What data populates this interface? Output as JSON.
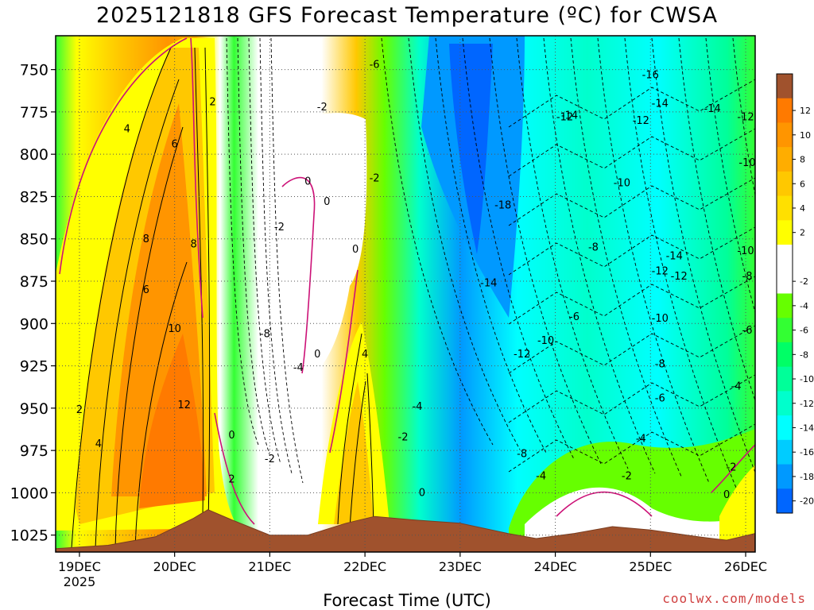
{
  "chart_data": {
    "type": "heatmap",
    "title": "2025121818 GFS Forecast Temperature (ºC) for CWSA",
    "xlabel": "Forecast Time (UTC)",
    "ylabel": "",
    "credit": "coolwx.com/models",
    "y_axis": {
      "unit": "hPa",
      "range": [
        730,
        1035
      ],
      "inverted": true,
      "ticks": [
        750,
        775,
        800,
        825,
        850,
        875,
        900,
        925,
        950,
        975,
        1000,
        1025
      ]
    },
    "x_axis": {
      "range": [
        18.75,
        26.1
      ],
      "ticks": [
        {
          "value": 19,
          "label": "19DEC",
          "sublabel": "2025"
        },
        {
          "value": 20,
          "label": "20DEC",
          "sublabel": ""
        },
        {
          "value": 21,
          "label": "21DEC",
          "sublabel": ""
        },
        {
          "value": 22,
          "label": "22DEC",
          "sublabel": ""
        },
        {
          "value": 23,
          "label": "23DEC",
          "sublabel": ""
        },
        {
          "value": 24,
          "label": "24DEC",
          "sublabel": ""
        },
        {
          "value": 25,
          "label": "25DEC",
          "sublabel": ""
        },
        {
          "value": 26,
          "label": "26DEC",
          "sublabel": ""
        }
      ]
    },
    "grid": true,
    "colorbar": {
      "position": "right",
      "levels": [
        {
          "label": "",
          "color": "#a0522d"
        },
        {
          "label": "12",
          "color": "#ff7a00"
        },
        {
          "label": "10",
          "color": "#ff9500"
        },
        {
          "label": "8",
          "color": "#ffad00"
        },
        {
          "label": "6",
          "color": "#ffc800"
        },
        {
          "label": "4",
          "color": "#ffe000"
        },
        {
          "label": "2",
          "color": "#ffff00"
        },
        {
          "label": "",
          "color": "#ffffff"
        },
        {
          "label": "-2",
          "color": "#ffffff"
        },
        {
          "label": "-4",
          "color": "#66ff00"
        },
        {
          "label": "-6",
          "color": "#33ff33"
        },
        {
          "label": "-8",
          "color": "#00ff66"
        },
        {
          "label": "-10",
          "color": "#00ff99"
        },
        {
          "label": "-12",
          "color": "#00ffcc"
        },
        {
          "label": "-14",
          "color": "#00ffff"
        },
        {
          "label": "-16",
          "color": "#00ccff"
        },
        {
          "label": "-18",
          "color": "#0099ff"
        },
        {
          "label": "-20",
          "color": "#0066ff"
        }
      ]
    },
    "contour_labels": [
      {
        "t": 19.5,
        "p": 787,
        "text": "4"
      },
      {
        "t": 20.0,
        "p": 796,
        "text": "6"
      },
      {
        "t": 20.4,
        "p": 771,
        "text": "2"
      },
      {
        "t": 19.7,
        "p": 852,
        "text": "8"
      },
      {
        "t": 20.2,
        "p": 855,
        "text": "8"
      },
      {
        "t": 19.7,
        "p": 882,
        "text": "6"
      },
      {
        "t": 20.0,
        "p": 905,
        "text": "10"
      },
      {
        "t": 20.1,
        "p": 950,
        "text": "12"
      },
      {
        "t": 19.0,
        "p": 953,
        "text": "2"
      },
      {
        "t": 19.2,
        "p": 973,
        "text": "4"
      },
      {
        "t": 20.6,
        "p": 968,
        "text": "0"
      },
      {
        "t": 20.6,
        "p": 994,
        "text": "2"
      },
      {
        "t": 21.0,
        "p": 982,
        "text": "-2"
      },
      {
        "t": 21.1,
        "p": 845,
        "text": "-2"
      },
      {
        "t": 20.95,
        "p": 908,
        "text": "-8"
      },
      {
        "t": 21.3,
        "p": 928,
        "text": "-4"
      },
      {
        "t": 21.4,
        "p": 818,
        "text": "0"
      },
      {
        "t": 21.6,
        "p": 830,
        "text": "0"
      },
      {
        "t": 21.5,
        "p": 920,
        "text": "0"
      },
      {
        "t": 21.55,
        "p": 774,
        "text": "-2"
      },
      {
        "t": 22.1,
        "p": 749,
        "text": "-6"
      },
      {
        "t": 22.1,
        "p": 816,
        "text": "-2"
      },
      {
        "t": 21.9,
        "p": 858,
        "text": "0"
      },
      {
        "t": 22.0,
        "p": 920,
        "text": "4"
      },
      {
        "t": 22.4,
        "p": 969,
        "text": "-2"
      },
      {
        "t": 22.55,
        "p": 951,
        "text": "-4"
      },
      {
        "t": 22.6,
        "p": 1002,
        "text": "0"
      },
      {
        "t": 23.45,
        "p": 832,
        "text": "-18"
      },
      {
        "t": 23.3,
        "p": 878,
        "text": "-14"
      },
      {
        "t": 23.65,
        "p": 920,
        "text": "-12"
      },
      {
        "t": 23.65,
        "p": 979,
        "text": "-8"
      },
      {
        "t": 23.9,
        "p": 912,
        "text": "-10"
      },
      {
        "t": 23.85,
        "p": 992,
        "text": "-4"
      },
      {
        "t": 24.2,
        "p": 898,
        "text": "-6"
      },
      {
        "t": 24.4,
        "p": 857,
        "text": "-8"
      },
      {
        "t": 24.7,
        "p": 819,
        "text": "-10"
      },
      {
        "t": 24.1,
        "p": 780,
        "text": "-12"
      },
      {
        "t": 24.9,
        "p": 782,
        "text": "-12"
      },
      {
        "t": 24.15,
        "p": 779,
        "text": "-14"
      },
      {
        "t": 25.1,
        "p": 772,
        "text": "-14"
      },
      {
        "t": 25.0,
        "p": 755,
        "text": "-16"
      },
      {
        "t": 25.65,
        "p": 775,
        "text": "-14"
      },
      {
        "t": 26.0,
        "p": 780,
        "text": "-12"
      },
      {
        "t": 26.2,
        "p": 807,
        "text": "-10"
      },
      {
        "t": 25.1,
        "p": 899,
        "text": "-10"
      },
      {
        "t": 25.1,
        "p": 871,
        "text": "-12"
      },
      {
        "t": 25.3,
        "p": 874,
        "text": "-12"
      },
      {
        "t": 25.25,
        "p": 862,
        "text": "-14"
      },
      {
        "t": 26.0,
        "p": 859,
        "text": "-10"
      },
      {
        "t": 26.1,
        "p": 874,
        "text": "-8"
      },
      {
        "t": 25.1,
        "p": 926,
        "text": "-8"
      },
      {
        "t": 26.05,
        "p": 906,
        "text": "-6"
      },
      {
        "t": 25.1,
        "p": 946,
        "text": "-6"
      },
      {
        "t": 24.9,
        "p": 970,
        "text": "-4"
      },
      {
        "t": 25.9,
        "p": 939,
        "text": "-4"
      },
      {
        "t": 24.75,
        "p": 992,
        "text": "-2"
      },
      {
        "t": 25.85,
        "p": 987,
        "text": "-2"
      },
      {
        "t": 25.8,
        "p": 1003,
        "text": "0"
      }
    ]
  }
}
